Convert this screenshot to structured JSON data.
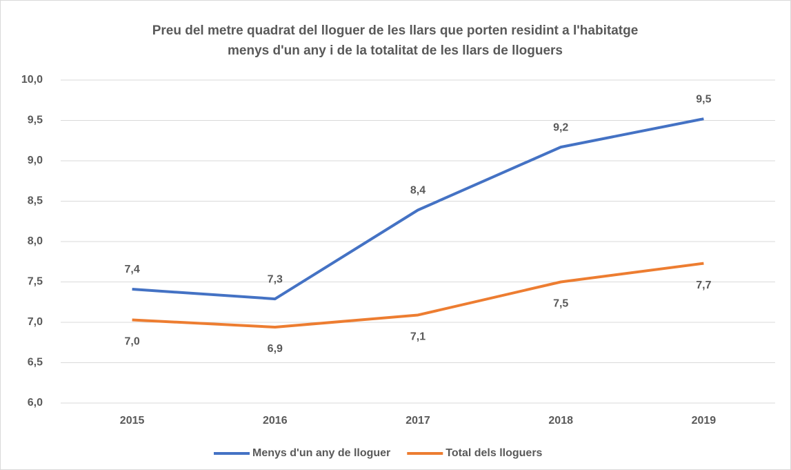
{
  "chart_data": {
    "type": "line",
    "title": [
      "Preu del metre quadrat del lloguer de les llars que porten residint a l'habitatge",
      "menys d'un any i de la totalitat de les llars de lloguers"
    ],
    "categories": [
      "2015",
      "2016",
      "2017",
      "2018",
      "2019"
    ],
    "series": [
      {
        "name": "Menys d'un any de lloguer",
        "color": "#4472c4",
        "values": [
          7.41,
          7.29,
          8.39,
          9.17,
          9.52
        ],
        "value_labels": [
          "7,4",
          "7,3",
          "8,4",
          "9,2",
          "9,5"
        ]
      },
      {
        "name": "Total dels lloguers",
        "color": "#ed7d31",
        "values": [
          7.03,
          6.94,
          7.09,
          7.5,
          7.73
        ],
        "value_labels": [
          "7,0",
          "6,9",
          "7,1",
          "7,5",
          "7,7"
        ]
      }
    ],
    "ylim": [
      6,
      10
    ],
    "yticks": [
      {
        "value": 6,
        "label": "6,0"
      },
      {
        "value": 6.5,
        "label": "6,5"
      },
      {
        "value": 7,
        "label": "7,0"
      },
      {
        "value": 7.5,
        "label": "7,5"
      },
      {
        "value": 8,
        "label": "8,0"
      },
      {
        "value": 8.5,
        "label": "8,5"
      },
      {
        "value": 9,
        "label": "9,0"
      },
      {
        "value": 9.5,
        "label": "9,5"
      },
      {
        "value": 10,
        "label": "10,0"
      }
    ],
    "grid": true,
    "legend": "bottom"
  }
}
